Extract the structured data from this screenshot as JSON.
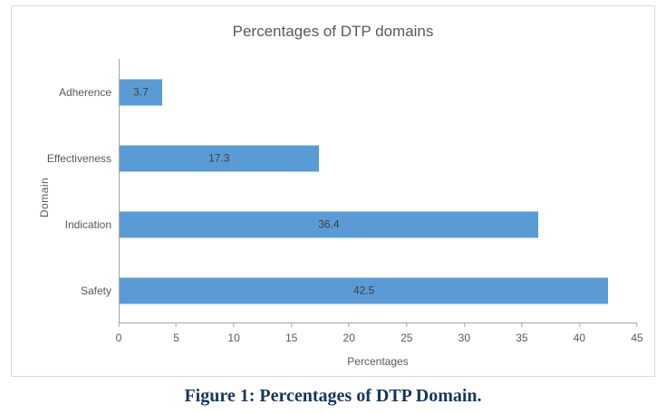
{
  "caption": "Figure 1: Percentages of DTP Domain.",
  "chart_data": {
    "type": "bar",
    "orientation": "horizontal",
    "title": "Percentages of DTP domains",
    "categories": [
      "Adherence",
      "Effectiveness",
      "Indication",
      "Safety"
    ],
    "values": [
      3.7,
      17.3,
      36.4,
      42.5
    ],
    "value_labels": [
      "3.7",
      "17.3",
      "36.4",
      "42.5"
    ],
    "xlabel": "Percentages",
    "ylabel": "Domain",
    "xlim": [
      0,
      45
    ],
    "xticks": [
      "0",
      "5",
      "10",
      "15",
      "20",
      "25",
      "30",
      "35",
      "40",
      "45"
    ],
    "bar_color": "#5b9bd5",
    "grid": false,
    "legend_position": "none"
  }
}
